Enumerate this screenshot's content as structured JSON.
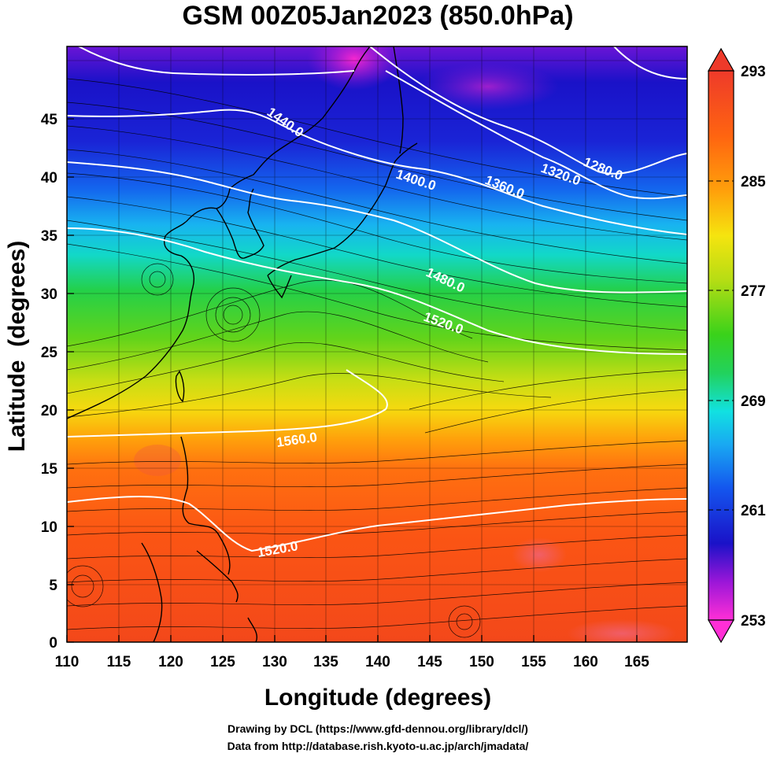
{
  "title": "GSM 00Z05Jan2023 (850.0hPa)",
  "map": {
    "x_axis": {
      "label": "Longitude (degrees)",
      "range": [
        110,
        170
      ],
      "ticks": [
        "110",
        "115",
        "120",
        "125",
        "130",
        "135",
        "140",
        "145",
        "150",
        "155",
        "160",
        "165"
      ]
    },
    "y_axis": {
      "label": "Latitude  (degrees)",
      "range": [
        0,
        50
      ],
      "ticks": [
        "0",
        "5",
        "10",
        "15",
        "20",
        "25",
        "30",
        "35",
        "40",
        "45"
      ]
    },
    "shading": {
      "quantity": "temperature",
      "range": [
        253,
        293
      ],
      "colorbar_labels": [
        "293",
        "285",
        "277",
        "269",
        "261",
        "253"
      ],
      "colors": [
        "#ff2fd6",
        "#9a16d8",
        "#1a12c8",
        "#1456ee",
        "#19a9f2",
        "#11e1e1",
        "#22d25c",
        "#3ad21a",
        "#b7dd14",
        "#f5e40f",
        "#ffa10b",
        "#ff6510",
        "#f4411a",
        "#ee3a2a"
      ]
    },
    "contours": [
      {
        "label": "1280.0"
      },
      {
        "label": "1320.0"
      },
      {
        "label": "1360.0"
      },
      {
        "label": "1400.0"
      },
      {
        "label": "1440.0"
      },
      {
        "label": "1480.0"
      },
      {
        "label": "1520.0"
      },
      {
        "label": "1560.0"
      },
      {
        "label": "1520.0"
      }
    ]
  },
  "footer": {
    "line1": "Drawing by DCL (https://www.gfd-dennou.org/library/dcl/)",
    "line2": "Data from http://database.rish.kyoto-u.ac.jp/arch/jmadata/"
  }
}
